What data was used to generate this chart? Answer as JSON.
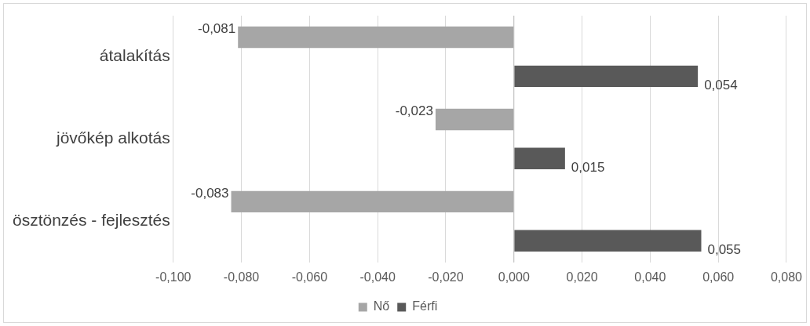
{
  "chart_data": {
    "type": "bar",
    "orientation": "horizontal",
    "categories": [
      "átalakítás",
      "jövőkép alkotás",
      "ösztönzés - fejlesztés"
    ],
    "series": [
      {
        "name": "Nő",
        "color": "#a6a6a6",
        "values": [
          -0.081,
          -0.023,
          -0.083
        ],
        "value_labels": [
          "-0,081",
          "-0,023",
          "-0,083"
        ]
      },
      {
        "name": "Férfi",
        "color": "#595959",
        "values": [
          0.054,
          0.015,
          0.055
        ],
        "value_labels": [
          "0,054",
          "0,015",
          "0,055"
        ]
      }
    ],
    "xlim": [
      -0.1,
      0.08
    ],
    "xticks": [
      {
        "value": -0.1,
        "label": "-0,100"
      },
      {
        "value": -0.08,
        "label": "-0,080"
      },
      {
        "value": -0.06,
        "label": "-0,060"
      },
      {
        "value": -0.04,
        "label": "-0,040"
      },
      {
        "value": -0.02,
        "label": "-0,020"
      },
      {
        "value": 0,
        "label": "0,000"
      },
      {
        "value": 0.02,
        "label": "0,020"
      },
      {
        "value": 0.04,
        "label": "0,040"
      },
      {
        "value": 0.06,
        "label": "0,060"
      },
      {
        "value": 0.08,
        "label": "0,080"
      }
    ],
    "grid": "x",
    "legend": "bottom"
  }
}
